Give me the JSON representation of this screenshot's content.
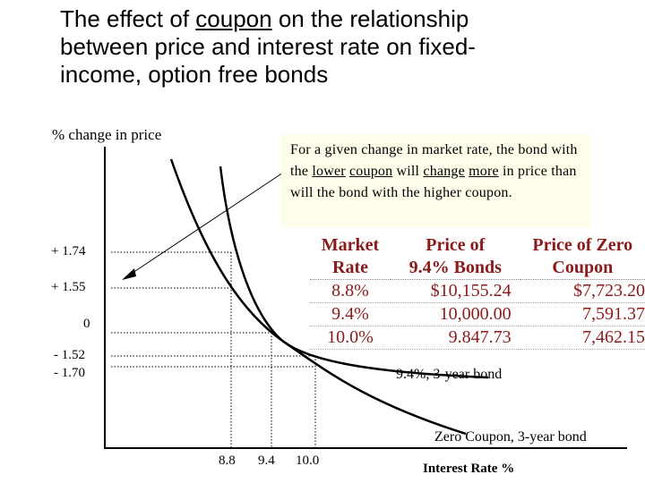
{
  "title": {
    "line1_pre": "The effect of ",
    "line1_underlined": "coupon",
    "line1_post": " on the relationship",
    "line2": "between price and interest rate on fixed-",
    "line3": "income, option free bonds"
  },
  "y_axis_label": "% change in price",
  "x_axis_label": "Interest Rate %",
  "callout": {
    "part1": "For a given change in market rate, the bond with the ",
    "lower": "lower",
    "sp1": " ",
    "coupon": "coupon",
    "part2": " will ",
    "change": "change",
    "sp2": " ",
    "more": "more",
    "part3": " in price than will the bond with the higher coupon."
  },
  "table": {
    "headers": [
      {
        "line1": "Market",
        "line2": "Rate"
      },
      {
        "line1": "Price of",
        "line2": "9.4% Bonds"
      },
      {
        "line1": "Price of Zero",
        "line2": "Coupon"
      }
    ],
    "rows": [
      [
        "8.8%",
        "$10,155.24",
        "$7,723.20"
      ],
      [
        "9.4%",
        "10,000.00",
        "7,591.37"
      ],
      [
        "10.0%",
        "9.847.73",
        "7,462.15"
      ]
    ]
  },
  "y_ticks": [
    "+ 1.74",
    "+ 1.55",
    "0",
    "- 1.52",
    "- 1.70"
  ],
  "x_ticks": [
    "8.8",
    "9.4",
    "10.0"
  ],
  "curve_labels": {
    "coupon_bond": "9.4%, 3-year bond",
    "zero_bond": "Zero Coupon, 3-year bond"
  },
  "colors": {
    "table_text": "#8b1a1a",
    "callout_background": "#fdfde9",
    "lines": "#000000"
  }
}
